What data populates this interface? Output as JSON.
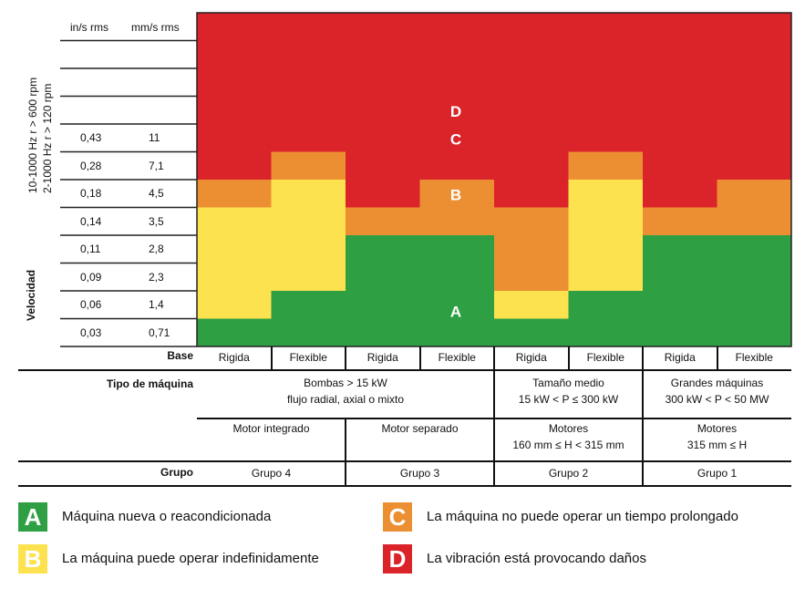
{
  "colors": {
    "A": "#2ea043",
    "B": "#fde24f",
    "C": "#ec8f33",
    "D": "#db232a",
    "grid": "#222222"
  },
  "axis": {
    "unit_in": "in/s rms",
    "unit_mm": "mm/s rms",
    "vertical_label_1": "10-1000 Hz r > 600 rpm",
    "vertical_label_2": "2-1000 Hz r > 120 rpm",
    "vertical_label_3": "Velocidad"
  },
  "chart_data": {
    "type": "heatmap",
    "thresholds_in": [
      "0,43",
      "0,28",
      "0,18",
      "0,14",
      "0,11",
      "0,09",
      "0,06",
      "0,03"
    ],
    "thresholds_mm": [
      "11",
      "7,1",
      "4,5",
      "3,5",
      "2,8",
      "2,3",
      "1,4",
      "0,71"
    ],
    "columns": [
      {
        "base": "Rigida",
        "zone_c_above_mm": 4.5,
        "zone_d_above_mm": 7.1
      },
      {
        "base": "Flexible",
        "zone_c_above_mm": 7.1,
        "zone_d_above_mm": 11
      },
      {
        "base": "Rigida",
        "zone_c_above_mm": 2.3,
        "zone_d_above_mm": 4.5
      },
      {
        "base": "Flexible",
        "zone_c_above_mm": 3.5,
        "zone_d_above_mm": 7.1
      },
      {
        "base": "Rigida",
        "zone_c_above_mm": 2.3,
        "zone_d_above_mm": 4.5
      },
      {
        "base": "Flexible",
        "zone_c_above_mm": 7.1,
        "zone_d_above_mm": 11
      },
      {
        "base": "Rigida",
        "zone_c_above_mm": 2.3,
        "zone_d_above_mm": 4.5
      },
      {
        "base": "Flexible",
        "zone_c_above_mm": 3.5,
        "zone_d_above_mm": 7.1
      }
    ],
    "zone_letters": [
      "A",
      "B",
      "C",
      "D"
    ]
  },
  "table": {
    "base_label": "Base",
    "machine_type_label": "Tipo de máquina",
    "group_label": "Grupo",
    "machine_types": [
      {
        "line1": "Bombas > 15 kW",
        "line2": "flujo radial, axial o mixto"
      },
      {
        "line1": "Tamaño medio",
        "line2": "15 kW < P ≤ 300 kW"
      },
      {
        "line1": "Grandes máquinas",
        "line2": "300 kW < P < 50 MW"
      }
    ],
    "motors": [
      {
        "line1": "Motor integrado",
        "line2": ""
      },
      {
        "line1": "Motor separado",
        "line2": ""
      },
      {
        "line1": "Motores",
        "line2": "160 mm ≤ H < 315 mm"
      },
      {
        "line1": "Motores",
        "line2": "315 mm ≤ H"
      }
    ],
    "groups": [
      "Grupo 4",
      "Grupo 3",
      "Grupo 2",
      "Grupo 1"
    ]
  },
  "legend": [
    {
      "letter": "A",
      "text": "Máquina nueva o reacondicionada"
    },
    {
      "letter": "B",
      "text": "La máquina puede operar indefinidamente"
    },
    {
      "letter": "C",
      "text": "La máquina no puede operar un tiempo prolongado"
    },
    {
      "letter": "D",
      "text": "La vibración está provocando daños"
    }
  ]
}
